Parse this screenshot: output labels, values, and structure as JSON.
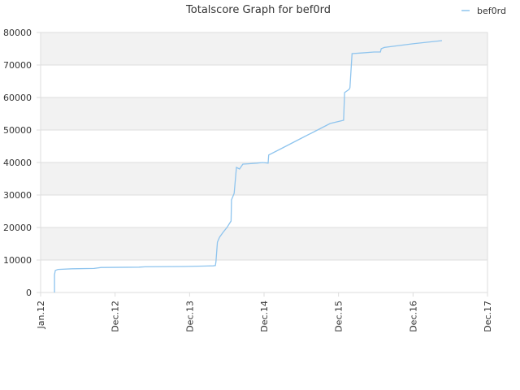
{
  "chart_data": {
    "type": "line",
    "title": "Totalscore Graph for bef0rd",
    "legend": {
      "position": "top-right",
      "entries": [
        "bef0rd"
      ]
    },
    "colors": {
      "series": "#8ec4ee",
      "band": "#f2f2f2",
      "grid": "#dddddd",
      "plot_border": "#dddddd",
      "axis_text": "#333333"
    },
    "xlim": [
      "2012-01-01",
      "2017-12-01"
    ],
    "ylim": [
      0,
      80000
    ],
    "x_ticks": [
      "Jan.12",
      "Dec.12",
      "Dec.13",
      "Dec.14",
      "Dec.15",
      "Dec.16",
      "Dec.17"
    ],
    "y_ticks": [
      "0",
      "10000",
      "20000",
      "30000",
      "40000",
      "50000",
      "60000",
      "70000",
      "80000"
    ],
    "grid": true,
    "series": [
      {
        "name": "bef0rd",
        "points": [
          [
            "2012-03-08",
            0
          ],
          [
            "2012-03-08",
            5500
          ],
          [
            "2012-03-12",
            6800
          ],
          [
            "2012-03-25",
            7100
          ],
          [
            "2012-06-01",
            7300
          ],
          [
            "2012-09-15",
            7400
          ],
          [
            "2012-10-20",
            7700
          ],
          [
            "2013-04-20",
            7800
          ],
          [
            "2013-05-20",
            7900
          ],
          [
            "2013-11-25",
            8000
          ],
          [
            "2014-04-15",
            8200
          ],
          [
            "2014-04-25",
            8300
          ],
          [
            "2014-04-28",
            9500
          ],
          [
            "2014-05-05",
            15500
          ],
          [
            "2014-05-15",
            17000
          ],
          [
            "2014-06-01",
            18500
          ],
          [
            "2014-06-20",
            20000
          ],
          [
            "2014-07-10",
            22000
          ],
          [
            "2014-07-12",
            28500
          ],
          [
            "2014-07-25",
            30500
          ],
          [
            "2014-08-05",
            38500
          ],
          [
            "2014-08-20",
            38000
          ],
          [
            "2014-09-05",
            39500
          ],
          [
            "2014-10-01",
            39600
          ],
          [
            "2014-11-10",
            39800
          ],
          [
            "2014-12-10",
            40000
          ],
          [
            "2015-01-05",
            39800
          ],
          [
            "2015-01-08",
            42300
          ],
          [
            "2015-03-01",
            44000
          ],
          [
            "2015-05-01",
            46000
          ],
          [
            "2015-07-01",
            48000
          ],
          [
            "2015-09-01",
            50000
          ],
          [
            "2015-11-01",
            52000
          ],
          [
            "2016-01-05",
            53000
          ],
          [
            "2016-01-10",
            61500
          ],
          [
            "2016-02-01",
            62500
          ],
          [
            "2016-02-05",
            63000
          ],
          [
            "2016-02-15",
            73500
          ],
          [
            "2016-04-01",
            73700
          ],
          [
            "2016-06-01",
            74000
          ],
          [
            "2016-07-01",
            74000
          ],
          [
            "2016-07-05",
            75000
          ],
          [
            "2016-07-20",
            75400
          ],
          [
            "2016-12-01",
            76500
          ],
          [
            "2017-04-25",
            77500
          ]
        ]
      }
    ]
  }
}
